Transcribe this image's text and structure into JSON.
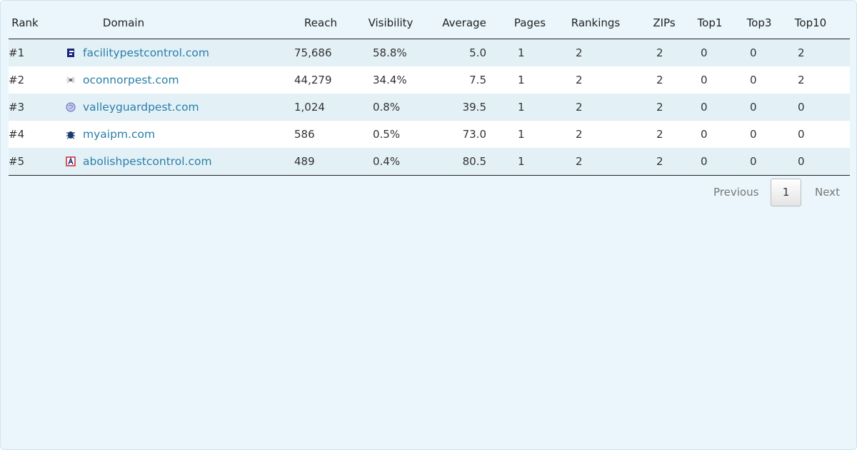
{
  "table": {
    "columns": [
      "Rank",
      "Domain",
      "Reach",
      "Visibility",
      "Average",
      "Pages",
      "Rankings",
      "ZIPs",
      "Top1",
      "Top3",
      "Top10"
    ],
    "rows": [
      [
        "#1",
        "facilitypestcontrol.com",
        "75,686",
        "58.8%",
        "5.0",
        "1",
        "2",
        "2",
        "0",
        "0",
        "2"
      ],
      [
        "#2",
        "oconnorpest.com",
        "44,279",
        "34.4%",
        "7.5",
        "1",
        "2",
        "2",
        "0",
        "0",
        "2"
      ],
      [
        "#3",
        "valleyguardpest.com",
        "1,024",
        "0.8%",
        "39.5",
        "1",
        "2",
        "2",
        "0",
        "0",
        "0"
      ],
      [
        "#4",
        "myaipm.com",
        "586",
        "0.5%",
        "73.0",
        "1",
        "2",
        "2",
        "0",
        "0",
        "0"
      ],
      [
        "#5",
        "abolishpestcontrol.com",
        "489",
        "0.4%",
        "80.5",
        "1",
        "2",
        "2",
        "0",
        "0",
        "0"
      ]
    ]
  },
  "pagination": {
    "previous": "Previous",
    "page": "1",
    "next": "Next"
  }
}
